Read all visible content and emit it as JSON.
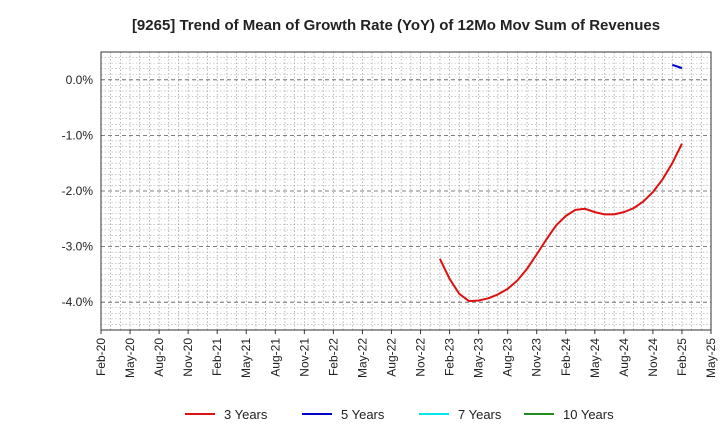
{
  "chart_data": {
    "type": "line",
    "title": "[9265]  Trend of Mean of Growth Rate (YoY) of 12Mo Mov Sum of Revenues",
    "xlabel": "",
    "ylabel": "",
    "x_ticks": [
      "Feb-20",
      "May-20",
      "Aug-20",
      "Nov-20",
      "Feb-21",
      "May-21",
      "Aug-21",
      "Nov-21",
      "Feb-22",
      "May-22",
      "Aug-22",
      "Nov-22",
      "Feb-23",
      "May-23",
      "Aug-23",
      "Nov-23",
      "Feb-24",
      "May-24",
      "Aug-24",
      "Nov-24",
      "Feb-25",
      "May-25"
    ],
    "y_ticks": [
      0.0,
      -1.0,
      -2.0,
      -3.0,
      -4.0
    ],
    "y_tick_labels": [
      "0.0%",
      "-1.0%",
      "-2.0%",
      "-3.0%",
      "-4.0%"
    ],
    "ylim": [
      -4.5,
      0.5
    ],
    "x_range_months": [
      0,
      63
    ],
    "grid": true,
    "legend_position": "bottom",
    "series": [
      {
        "name": "3 Years",
        "color": "#dd1111",
        "points": [
          {
            "m": 35,
            "v": -3.22
          },
          {
            "m": 36,
            "v": -3.58
          },
          {
            "m": 37,
            "v": -3.85
          },
          {
            "m": 38,
            "v": -3.98
          },
          {
            "m": 39,
            "v": -3.97
          },
          {
            "m": 40,
            "v": -3.93
          },
          {
            "m": 41,
            "v": -3.86
          },
          {
            "m": 42,
            "v": -3.76
          },
          {
            "m": 43,
            "v": -3.61
          },
          {
            "m": 44,
            "v": -3.4
          },
          {
            "m": 45,
            "v": -3.14
          },
          {
            "m": 46,
            "v": -2.87
          },
          {
            "m": 47,
            "v": -2.62
          },
          {
            "m": 48,
            "v": -2.45
          },
          {
            "m": 49,
            "v": -2.34
          },
          {
            "m": 50,
            "v": -2.32
          },
          {
            "m": 51,
            "v": -2.38
          },
          {
            "m": 52,
            "v": -2.42
          },
          {
            "m": 53,
            "v": -2.42
          },
          {
            "m": 54,
            "v": -2.38
          },
          {
            "m": 55,
            "v": -2.31
          },
          {
            "m": 56,
            "v": -2.19
          },
          {
            "m": 57,
            "v": -2.02
          },
          {
            "m": 58,
            "v": -1.79
          },
          {
            "m": 59,
            "v": -1.5
          },
          {
            "m": 60,
            "v": -1.15
          }
        ]
      },
      {
        "name": "5 Years",
        "color": "#0000cc",
        "points": [
          {
            "m": 59,
            "v": 0.27
          },
          {
            "m": 60,
            "v": 0.21
          }
        ]
      },
      {
        "name": "7 Years",
        "color": "#00e5ee",
        "points": []
      },
      {
        "name": "10 Years",
        "color": "#228b22",
        "points": []
      }
    ]
  }
}
